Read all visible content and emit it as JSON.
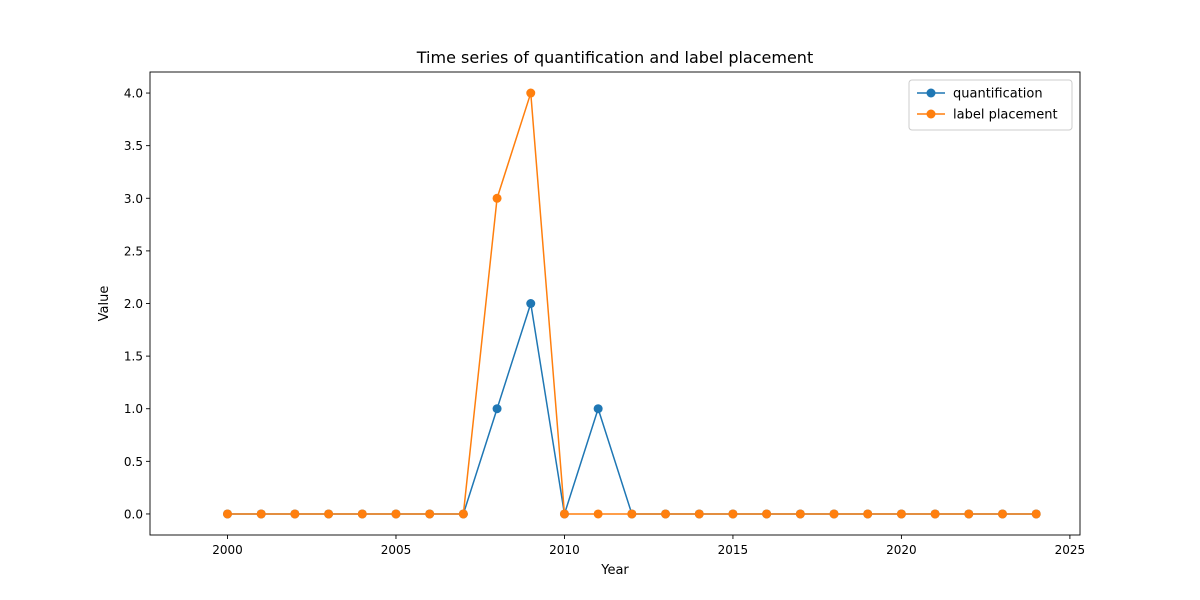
{
  "chart_data": {
    "type": "line",
    "title": "Time series of quantification and label placement",
    "xlabel": "Year",
    "ylabel": "Value",
    "x": [
      2000,
      2001,
      2002,
      2003,
      2004,
      2005,
      2006,
      2007,
      2008,
      2009,
      2010,
      2011,
      2012,
      2013,
      2014,
      2015,
      2016,
      2017,
      2018,
      2019,
      2020,
      2021,
      2022,
      2023,
      2024
    ],
    "series": [
      {
        "name": "quantification",
        "color": "#1f77b4",
        "values": [
          0,
          0,
          0,
          0,
          0,
          0,
          0,
          0,
          1,
          2,
          0,
          1,
          0,
          0,
          0,
          0,
          0,
          0,
          0,
          0,
          0,
          0,
          0,
          0,
          0
        ]
      },
      {
        "name": "label placement",
        "color": "#ff7f0e",
        "values": [
          0,
          0,
          0,
          0,
          0,
          0,
          0,
          0,
          3,
          4,
          0,
          0,
          0,
          0,
          0,
          0,
          0,
          0,
          0,
          0,
          0,
          0,
          0,
          0,
          0
        ]
      }
    ],
    "xlim": [
      1997.7,
      2025.3
    ],
    "ylim": [
      -0.2,
      4.2
    ],
    "xticks": [
      "2000",
      "2005",
      "2010",
      "2015",
      "2020",
      "2025"
    ],
    "yticks": [
      "0.0",
      "0.5",
      "1.0",
      "1.5",
      "2.0",
      "2.5",
      "3.0",
      "3.5",
      "4.0"
    ],
    "legend_position": "top-right",
    "grid": false,
    "marker": "circle"
  }
}
